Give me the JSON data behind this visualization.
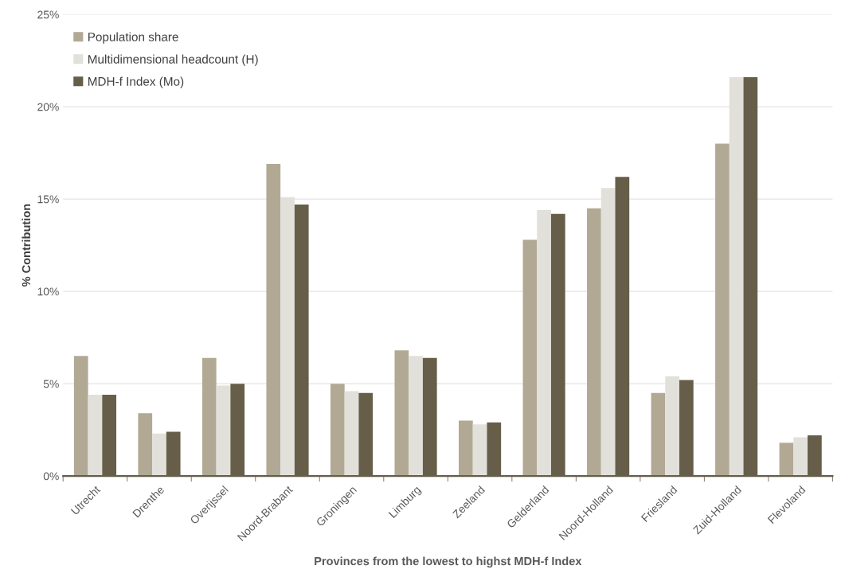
{
  "chart_data": {
    "type": "bar",
    "xlabel": "Provinces from the lowest to highst MDH-f Index",
    "ylabel": "% Contribution",
    "categories": [
      "Utrecht",
      "Drenthe",
      "Overijssel",
      "Noord-Brabant",
      "Groningen",
      "Limburg",
      "Zeeland",
      "Gelderland",
      "Noord-Holland",
      "Friesland",
      "Zuid-Holland",
      "Flevoland"
    ],
    "series": [
      {
        "name": "Population share",
        "color": "#b1a994",
        "values": [
          6.5,
          3.4,
          6.4,
          16.9,
          5.0,
          6.8,
          3.0,
          12.8,
          14.5,
          4.5,
          18.0,
          1.8
        ]
      },
      {
        "name": "Multidimensional headcount (H)",
        "color": "#e2e0da",
        "values": [
          4.4,
          2.3,
          4.9,
          15.1,
          4.6,
          6.5,
          2.8,
          14.4,
          15.6,
          5.4,
          21.6,
          2.1
        ]
      },
      {
        "name": "MDH-f Index (Mo)",
        "color": "#665e49",
        "values": [
          4.4,
          2.4,
          5.0,
          14.7,
          4.5,
          6.4,
          2.9,
          14.2,
          16.2,
          5.2,
          21.6,
          2.2
        ]
      }
    ],
    "ylim": [
      0,
      25
    ],
    "yticks": [
      {
        "value": 0,
        "label": "0%"
      },
      {
        "value": 5,
        "label": "5%"
      },
      {
        "value": 10,
        "label": "10%"
      },
      {
        "value": 15,
        "label": "15%"
      },
      {
        "value": 20,
        "label": "20%"
      },
      {
        "value": 25,
        "label": "25%"
      }
    ],
    "grid": "y",
    "legend": "top left"
  }
}
